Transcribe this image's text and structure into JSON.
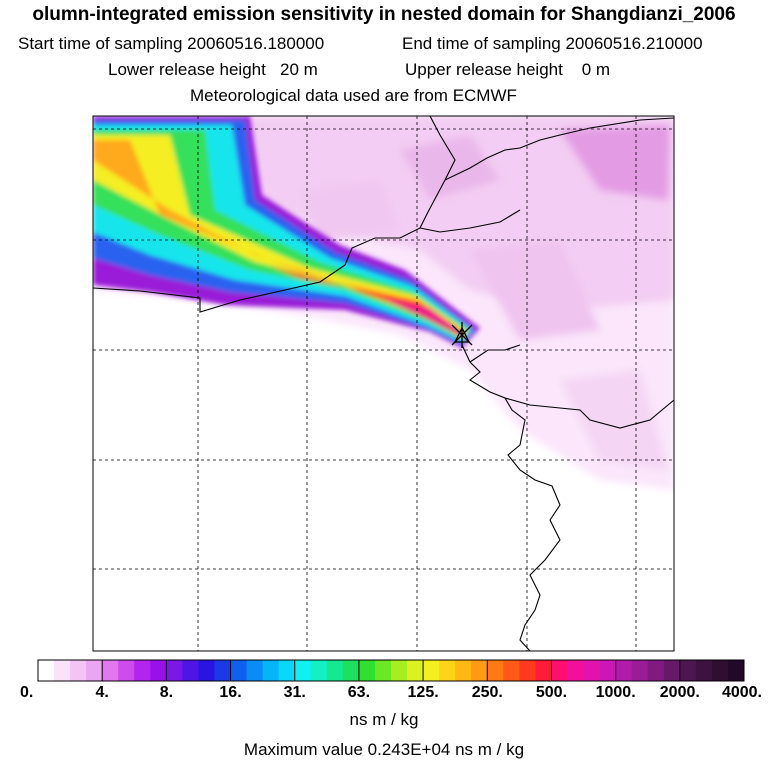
{
  "title": "olumn-integrated emission sensitivity in nested domain for Shangdianzi_2006",
  "start_label": "Start time of sampling 20060516.180000",
  "end_label": "End time of sampling 20060516.210000",
  "lower_label": "Lower release height   20 m",
  "upper_label": "Upper release height    0 m",
  "met_label": "Meteorological data used are from ECMWF",
  "colorbar": {
    "tick_labels": [
      "0.",
      "4.",
      "8.",
      "16.",
      "31.",
      "63.",
      "125.",
      "250.",
      "500.",
      "1000.",
      "2000.",
      "4000."
    ],
    "unit": "ns m / kg"
  },
  "max_label": "Maximum value  0.243E+04 ns m / kg",
  "chart_data": {
    "type": "heatmap",
    "title": "olumn-integrated emission sensitivity in nested domain for Shangdianzi_2006",
    "unit": "ns m / kg",
    "scale_levels": [
      0,
      4,
      8,
      16,
      31,
      63,
      125,
      250,
      500,
      1000,
      2000,
      4000
    ],
    "max_value": 2430,
    "receptor": "Shangdianzi",
    "plume_direction": "northwest of receptor",
    "gridlines": true
  }
}
